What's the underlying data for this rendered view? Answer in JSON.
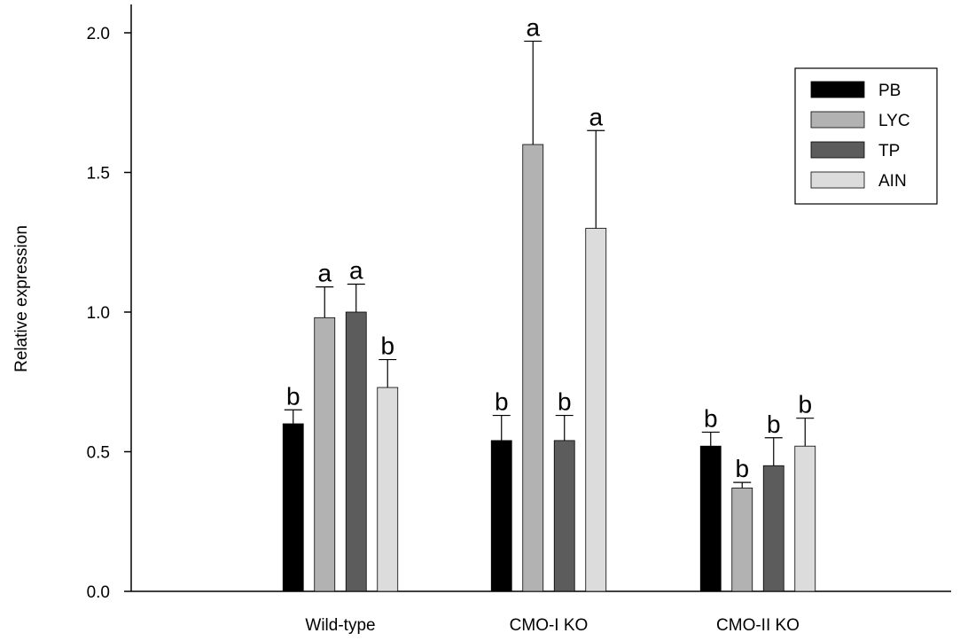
{
  "chart_data": {
    "type": "bar",
    "title": "",
    "xlabel": "",
    "ylabel": "Relative expression",
    "ylim": [
      0,
      2.1
    ],
    "yticks": [
      "0.0",
      "0.5",
      "1.0",
      "1.5",
      "2.0"
    ],
    "categories": [
      "Wild-type",
      "CMO-I KO",
      "CMO-II KO"
    ],
    "series": [
      {
        "name": "PB",
        "color": "#000000",
        "values": [
          0.6,
          0.54,
          0.52
        ],
        "errors": [
          0.05,
          0.09,
          0.05
        ],
        "labels": [
          "b",
          "b",
          "b"
        ]
      },
      {
        "name": "LYC",
        "color": "#b2b2b2",
        "values": [
          0.98,
          1.6,
          0.37
        ],
        "errors": [
          0.11,
          0.37,
          0.02
        ],
        "labels": [
          "a",
          "a",
          "b"
        ]
      },
      {
        "name": "TP",
        "color": "#5c5c5c",
        "values": [
          1.0,
          0.54,
          0.45
        ],
        "errors": [
          0.1,
          0.09,
          0.1
        ],
        "labels": [
          "a",
          "b",
          "b"
        ]
      },
      {
        "name": "AIN",
        "color": "#dcdcdc",
        "values": [
          0.73,
          1.3,
          0.52
        ],
        "errors": [
          0.1,
          0.35,
          0.1
        ],
        "labels": [
          "b",
          "a",
          "b"
        ]
      }
    ],
    "grid": false,
    "legend_position": "top-right"
  }
}
